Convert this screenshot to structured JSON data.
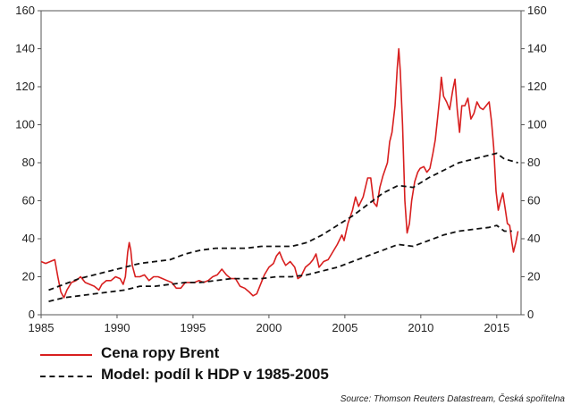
{
  "chart_data": {
    "type": "line",
    "xlim": [
      1985,
      2016.6
    ],
    "ylim": [
      0,
      160
    ],
    "x_ticks": [
      1985,
      1990,
      1995,
      2000,
      2005,
      2010,
      2015
    ],
    "y_ticks": [
      0,
      20,
      40,
      60,
      80,
      100,
      120,
      140,
      160
    ],
    "grid": false,
    "y_axis_both_sides": true,
    "legend_placement": "bottom-left",
    "source": "Source: Thomson Reuters Datastream, Česká spořitelna",
    "series": [
      {
        "name": "Cena ropy Brent",
        "style": "solid",
        "color": "#d81f1f",
        "points": [
          [
            1985.0,
            28
          ],
          [
            1985.3,
            27
          ],
          [
            1985.6,
            28
          ],
          [
            1985.9,
            29
          ],
          [
            1986.1,
            20
          ],
          [
            1986.3,
            12
          ],
          [
            1986.5,
            9
          ],
          [
            1986.7,
            13
          ],
          [
            1987.0,
            17
          ],
          [
            1987.3,
            18
          ],
          [
            1987.6,
            20
          ],
          [
            1987.9,
            17
          ],
          [
            1988.2,
            16
          ],
          [
            1988.5,
            15
          ],
          [
            1988.8,
            13
          ],
          [
            1989.0,
            16
          ],
          [
            1989.3,
            18
          ],
          [
            1989.6,
            18
          ],
          [
            1989.9,
            20
          ],
          [
            1990.2,
            19
          ],
          [
            1990.4,
            16
          ],
          [
            1990.55,
            20
          ],
          [
            1990.7,
            33
          ],
          [
            1990.8,
            38
          ],
          [
            1990.9,
            34
          ],
          [
            1991.0,
            26
          ],
          [
            1991.2,
            20
          ],
          [
            1991.5,
            20
          ],
          [
            1991.8,
            21
          ],
          [
            1992.1,
            18
          ],
          [
            1992.4,
            20
          ],
          [
            1992.7,
            20
          ],
          [
            1993.0,
            19
          ],
          [
            1993.3,
            18
          ],
          [
            1993.6,
            17
          ],
          [
            1993.9,
            14
          ],
          [
            1994.2,
            14
          ],
          [
            1994.5,
            17
          ],
          [
            1994.8,
            17
          ],
          [
            1995.1,
            17
          ],
          [
            1995.4,
            18
          ],
          [
            1995.7,
            17
          ],
          [
            1996.0,
            18
          ],
          [
            1996.3,
            20
          ],
          [
            1996.6,
            21
          ],
          [
            1996.9,
            24
          ],
          [
            1997.2,
            21
          ],
          [
            1997.5,
            19
          ],
          [
            1997.8,
            19
          ],
          [
            1998.1,
            15
          ],
          [
            1998.4,
            14
          ],
          [
            1998.7,
            12
          ],
          [
            1998.95,
            10
          ],
          [
            1999.2,
            11
          ],
          [
            1999.4,
            15
          ],
          [
            1999.7,
            21
          ],
          [
            2000.0,
            25
          ],
          [
            2000.3,
            27
          ],
          [
            2000.5,
            31
          ],
          [
            2000.7,
            33
          ],
          [
            2000.9,
            29
          ],
          [
            2001.1,
            26
          ],
          [
            2001.4,
            28
          ],
          [
            2001.7,
            25
          ],
          [
            2001.9,
            19
          ],
          [
            2002.1,
            20
          ],
          [
            2002.4,
            25
          ],
          [
            2002.7,
            27
          ],
          [
            2002.9,
            29
          ],
          [
            2003.1,
            32
          ],
          [
            2003.3,
            25
          ],
          [
            2003.6,
            28
          ],
          [
            2003.9,
            29
          ],
          [
            2004.2,
            33
          ],
          [
            2004.5,
            37
          ],
          [
            2004.8,
            42
          ],
          [
            2004.95,
            39
          ],
          [
            2005.2,
            48
          ],
          [
            2005.5,
            55
          ],
          [
            2005.7,
            62
          ],
          [
            2005.9,
            57
          ],
          [
            2006.2,
            62
          ],
          [
            2006.5,
            72
          ],
          [
            2006.7,
            72
          ],
          [
            2006.9,
            59
          ],
          [
            2007.1,
            57
          ],
          [
            2007.3,
            67
          ],
          [
            2007.5,
            73
          ],
          [
            2007.8,
            80
          ],
          [
            2007.95,
            91
          ],
          [
            2008.1,
            96
          ],
          [
            2008.3,
            110
          ],
          [
            2008.45,
            130
          ],
          [
            2008.55,
            140
          ],
          [
            2008.65,
            128
          ],
          [
            2008.8,
            100
          ],
          [
            2008.95,
            60
          ],
          [
            2009.1,
            43
          ],
          [
            2009.25,
            48
          ],
          [
            2009.4,
            60
          ],
          [
            2009.6,
            70
          ],
          [
            2009.8,
            75
          ],
          [
            2009.95,
            77
          ],
          [
            2010.2,
            78
          ],
          [
            2010.4,
            75
          ],
          [
            2010.6,
            77
          ],
          [
            2010.8,
            85
          ],
          [
            2010.95,
            92
          ],
          [
            2011.1,
            103
          ],
          [
            2011.25,
            115
          ],
          [
            2011.35,
            125
          ],
          [
            2011.5,
            115
          ],
          [
            2011.7,
            112
          ],
          [
            2011.9,
            108
          ],
          [
            2012.1,
            118
          ],
          [
            2012.25,
            124
          ],
          [
            2012.4,
            108
          ],
          [
            2012.55,
            96
          ],
          [
            2012.7,
            110
          ],
          [
            2012.9,
            110
          ],
          [
            2013.1,
            114
          ],
          [
            2013.3,
            103
          ],
          [
            2013.5,
            106
          ],
          [
            2013.7,
            112
          ],
          [
            2013.9,
            109
          ],
          [
            2014.1,
            108
          ],
          [
            2014.3,
            110
          ],
          [
            2014.5,
            112
          ],
          [
            2014.65,
            102
          ],
          [
            2014.8,
            88
          ],
          [
            2014.95,
            65
          ],
          [
            2015.1,
            55
          ],
          [
            2015.25,
            60
          ],
          [
            2015.4,
            64
          ],
          [
            2015.55,
            56
          ],
          [
            2015.7,
            48
          ],
          [
            2015.85,
            47
          ],
          [
            2016.0,
            38
          ],
          [
            2016.1,
            33
          ],
          [
            2016.25,
            38
          ],
          [
            2016.4,
            44
          ]
        ]
      },
      {
        "name": "Model: podíl k HDP v 1985-2005",
        "style": "dashed",
        "color": "#111111",
        "points": [
          [
            1985.5,
            13
          ],
          [
            1986.5,
            16
          ],
          [
            1987.5,
            19
          ],
          [
            1988.5,
            21
          ],
          [
            1989.5,
            23
          ],
          [
            1990.5,
            25
          ],
          [
            1991.5,
            27
          ],
          [
            1992.5,
            28
          ],
          [
            1993.5,
            29
          ],
          [
            1994.5,
            32
          ],
          [
            1995.5,
            34
          ],
          [
            1996.5,
            35
          ],
          [
            1997.5,
            35
          ],
          [
            1998.5,
            35
          ],
          [
            1999.5,
            36
          ],
          [
            2000.5,
            36
          ],
          [
            2001.5,
            36
          ],
          [
            2002.5,
            38
          ],
          [
            2003.5,
            42
          ],
          [
            2004.5,
            47
          ],
          [
            2005.5,
            52
          ],
          [
            2006.5,
            58
          ],
          [
            2007.5,
            64
          ],
          [
            2008.5,
            68
          ],
          [
            2009.5,
            67
          ],
          [
            2010.5,
            72
          ],
          [
            2011.5,
            76
          ],
          [
            2012.5,
            80
          ],
          [
            2013.5,
            82
          ],
          [
            2014.5,
            84
          ],
          [
            2015.0,
            85
          ],
          [
            2015.5,
            82
          ],
          [
            2016.4,
            80
          ]
        ]
      },
      {
        "name": "",
        "style": "dashed",
        "color": "#111111",
        "points": [
          [
            1985.5,
            7
          ],
          [
            1986.5,
            9
          ],
          [
            1987.5,
            10
          ],
          [
            1988.5,
            11
          ],
          [
            1989.5,
            12
          ],
          [
            1990.5,
            13
          ],
          [
            1991.5,
            15
          ],
          [
            1992.5,
            15
          ],
          [
            1993.5,
            16
          ],
          [
            1994.5,
            17
          ],
          [
            1995.5,
            17
          ],
          [
            1996.5,
            18
          ],
          [
            1997.5,
            19
          ],
          [
            1998.5,
            19
          ],
          [
            1999.5,
            19
          ],
          [
            2000.5,
            20
          ],
          [
            2001.5,
            20
          ],
          [
            2002.5,
            21
          ],
          [
            2003.5,
            23
          ],
          [
            2004.5,
            25
          ],
          [
            2005.5,
            28
          ],
          [
            2006.5,
            31
          ],
          [
            2007.5,
            34
          ],
          [
            2008.5,
            37
          ],
          [
            2009.5,
            36
          ],
          [
            2010.5,
            39
          ],
          [
            2011.5,
            42
          ],
          [
            2012.5,
            44
          ],
          [
            2013.5,
            45
          ],
          [
            2014.5,
            46
          ],
          [
            2015.0,
            47
          ],
          [
            2015.5,
            44
          ],
          [
            2016.0,
            44
          ]
        ]
      }
    ]
  }
}
